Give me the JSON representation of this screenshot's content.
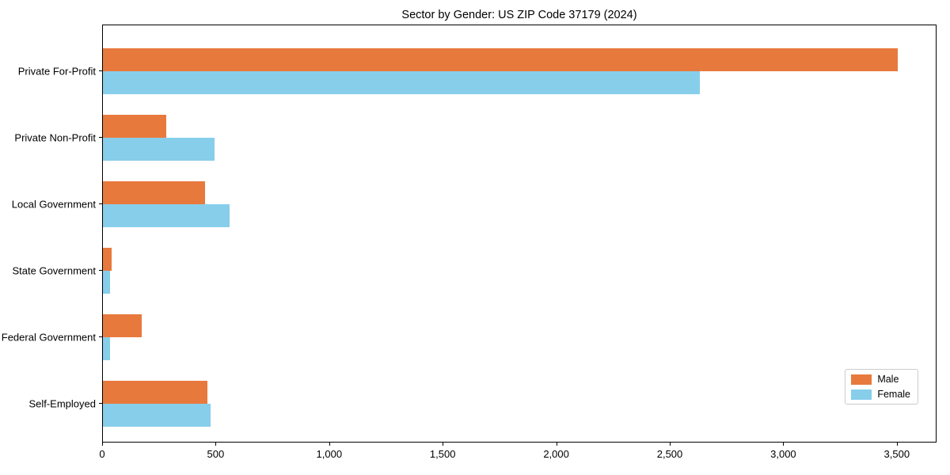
{
  "chart_data": {
    "type": "bar",
    "orientation": "horizontal",
    "title": "Sector by Gender: US ZIP Code 37179 (2024)",
    "categories": [
      "Private For-Profit",
      "Private Non-Profit",
      "Local Government",
      "State Government",
      "Federal Government",
      "Self-Employed"
    ],
    "series": [
      {
        "name": "Male",
        "color": "#e8793d",
        "values": [
          3500,
          280,
          450,
          38,
          170,
          460
        ]
      },
      {
        "name": "Female",
        "color": "#87ceeb",
        "values": [
          2630,
          490,
          557,
          33,
          30,
          475
        ]
      }
    ],
    "xlabel": "",
    "ylabel": "",
    "xlim": [
      0,
      3675
    ],
    "xticks": [
      0,
      500,
      1000,
      1500,
      2000,
      2500,
      3000,
      3500
    ],
    "xtick_labels": [
      "0",
      "500",
      "1,000",
      "1,500",
      "2,000",
      "2,500",
      "3,000",
      "3,500"
    ],
    "grid": false,
    "legend": {
      "position": "lower right",
      "entries": [
        "Male",
        "Female"
      ]
    }
  }
}
